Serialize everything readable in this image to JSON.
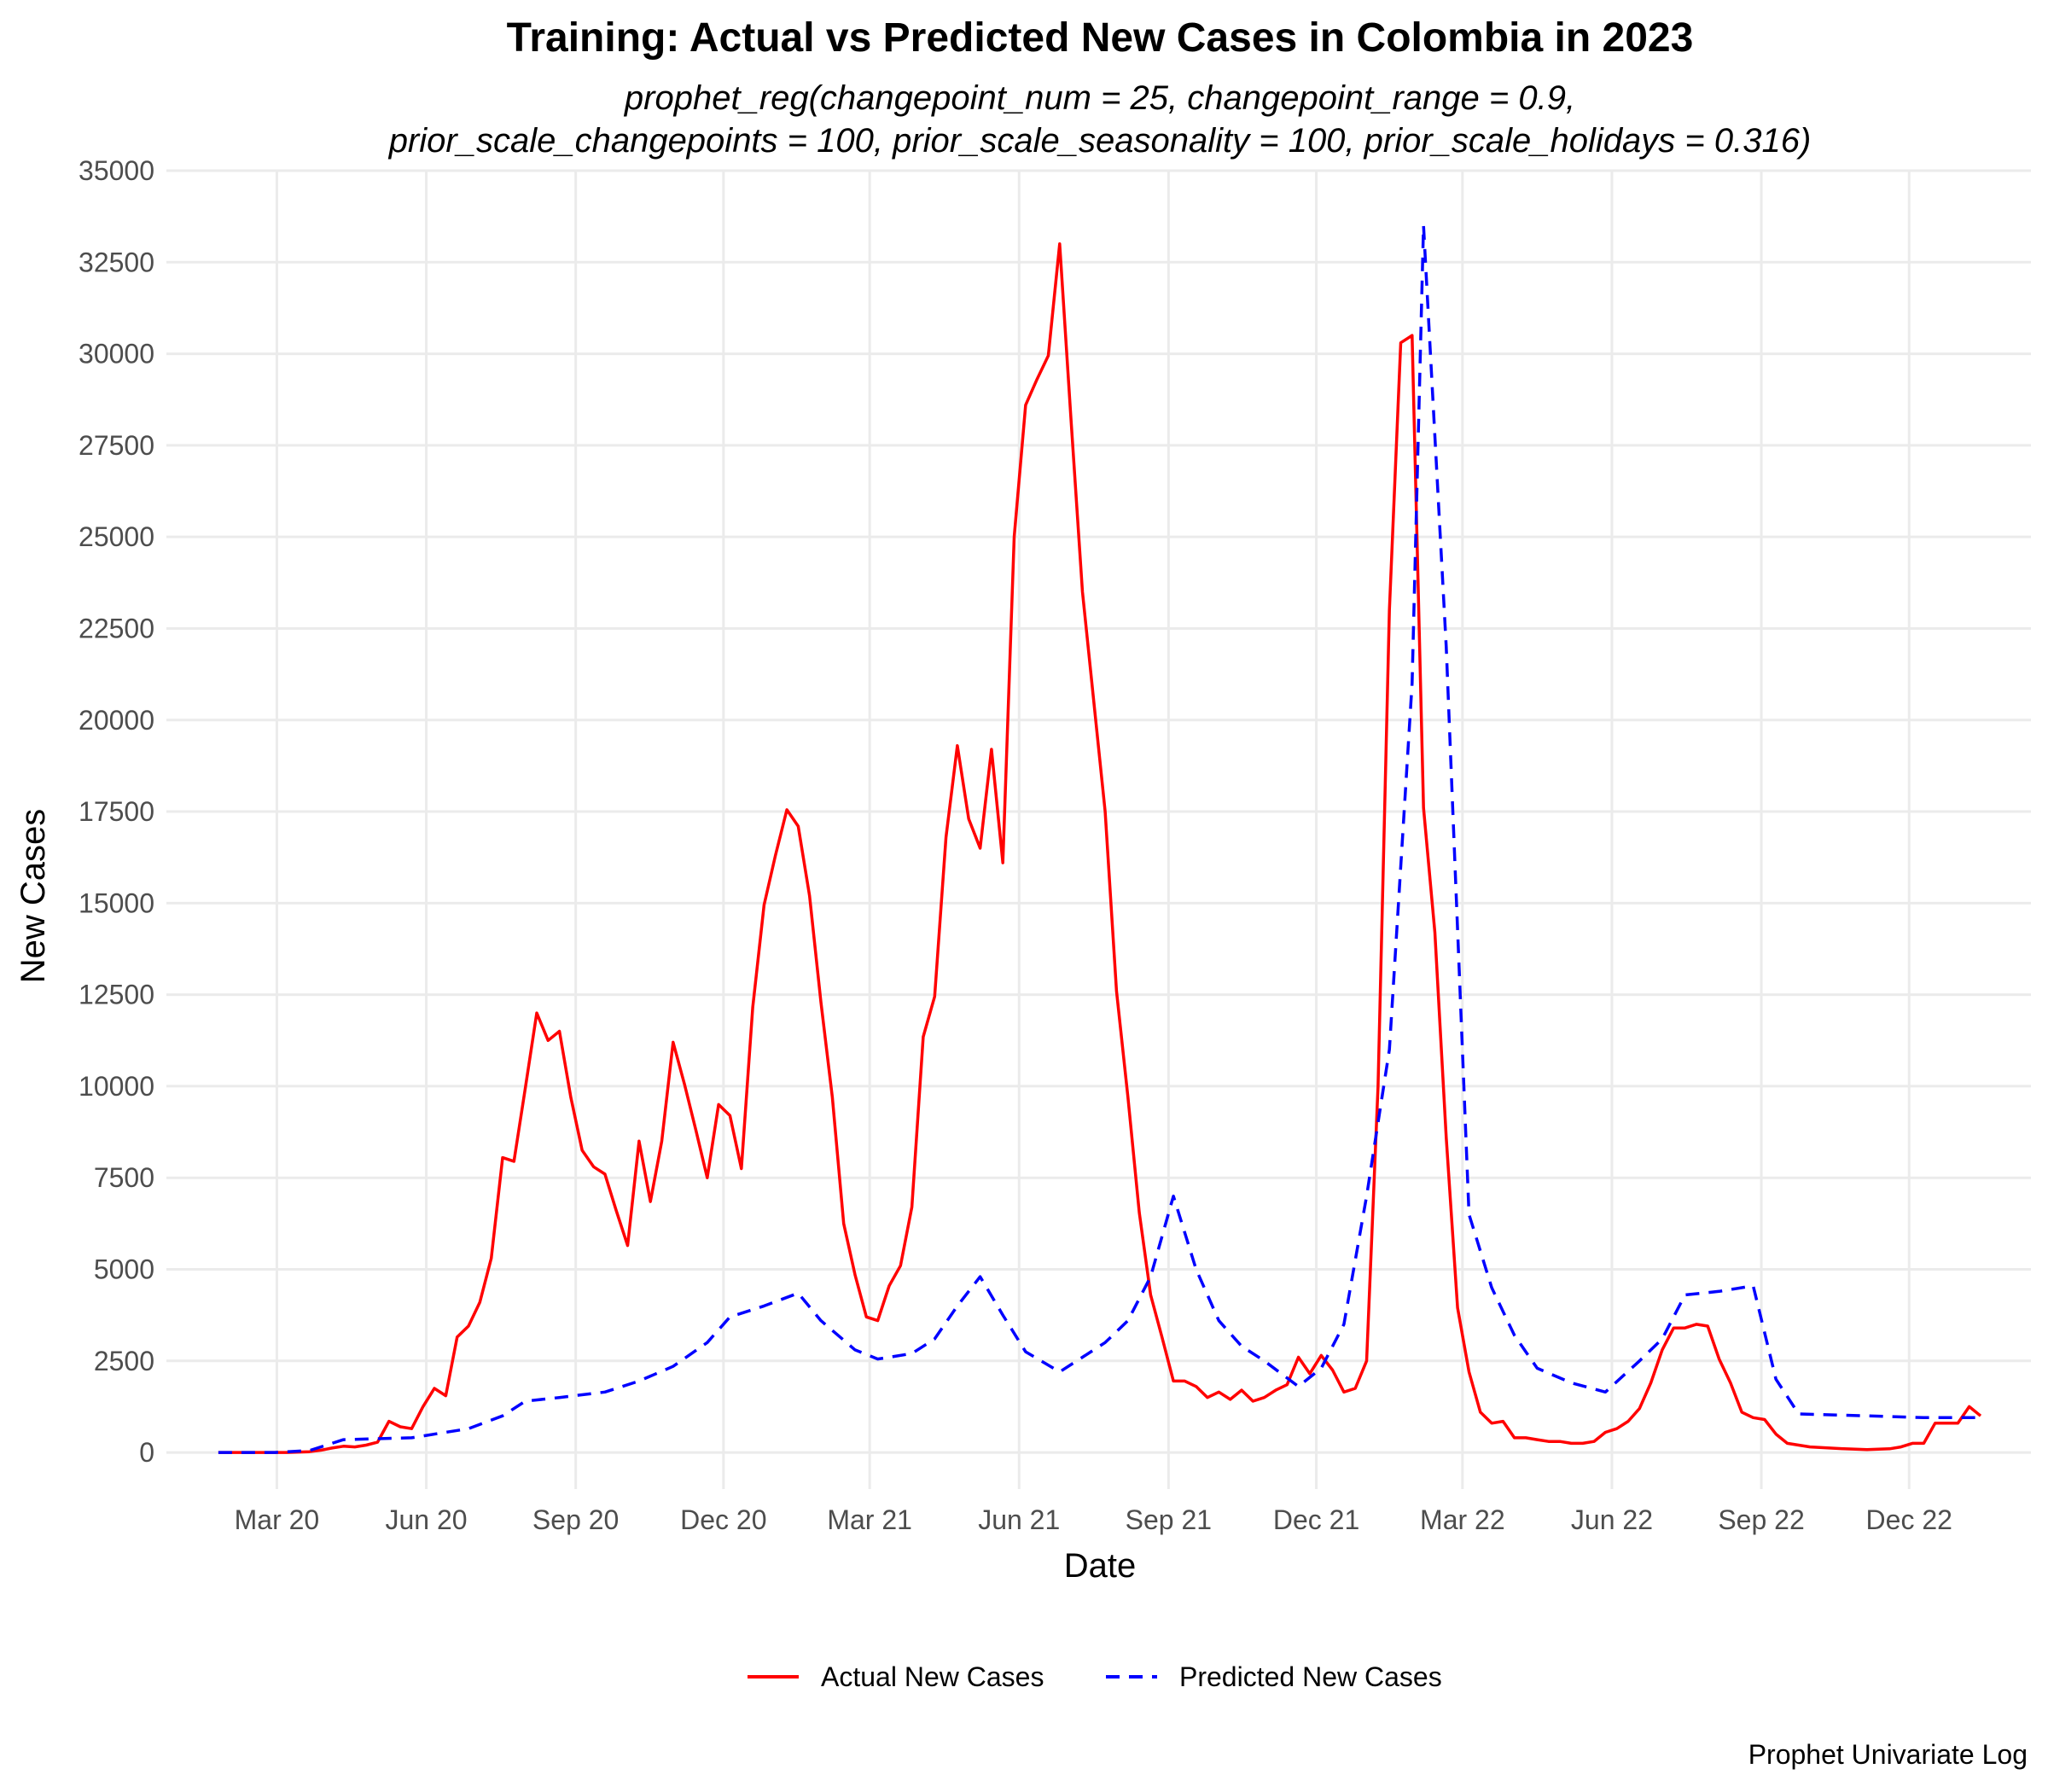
{
  "chart_data": {
    "type": "line",
    "title": "Training: Actual vs Predicted New Cases in Colombia in 2023",
    "subtitle_lines": [
      "prophet_reg(changepoint_num = 25, changepoint_range = 0.9,",
      "prior_scale_changepoints = 100, prior_scale_seasonality = 100, prior_scale_holidays = 0.316)"
    ],
    "xlabel": "Date",
    "ylabel": "New Cases",
    "caption": "Prophet Univariate Log",
    "ylim": [
      -1000,
      35000
    ],
    "y_ticks": [
      0,
      2500,
      5000,
      7500,
      10000,
      12500,
      15000,
      17500,
      20000,
      22500,
      25000,
      27500,
      30000,
      32500,
      35000
    ],
    "xlim": [
      "2019-12-24",
      "2023-02-14"
    ],
    "x_ticks": [
      {
        "date": "2020-03-01",
        "label": "Mar 20"
      },
      {
        "date": "2020-06-01",
        "label": "Jun 20"
      },
      {
        "date": "2020-09-01",
        "label": "Sep 20"
      },
      {
        "date": "2020-12-01",
        "label": "Dec 20"
      },
      {
        "date": "2021-03-01",
        "label": "Mar 21"
      },
      {
        "date": "2021-06-01",
        "label": "Jun 21"
      },
      {
        "date": "2021-09-01",
        "label": "Sep 21"
      },
      {
        "date": "2021-12-01",
        "label": "Dec 21"
      },
      {
        "date": "2022-03-01",
        "label": "Mar 22"
      },
      {
        "date": "2022-06-01",
        "label": "Jun 22"
      },
      {
        "date": "2022-09-01",
        "label": "Sep 22"
      },
      {
        "date": "2022-12-01",
        "label": "Dec 22"
      }
    ],
    "grid": true,
    "legend_position": "bottom",
    "series": [
      {
        "name": "Actual New Cases",
        "color": "#ff0000",
        "dash": "solid",
        "points": [
          [
            "2020-01-25",
            0
          ],
          [
            "2020-02-15",
            0
          ],
          [
            "2020-03-07",
            0
          ],
          [
            "2020-03-21",
            20
          ],
          [
            "2020-03-28",
            60
          ],
          [
            "2020-04-04",
            120
          ],
          [
            "2020-04-11",
            170
          ],
          [
            "2020-04-18",
            150
          ],
          [
            "2020-04-25",
            200
          ],
          [
            "2020-05-02",
            280
          ],
          [
            "2020-05-09",
            850
          ],
          [
            "2020-05-16",
            700
          ],
          [
            "2020-05-23",
            650
          ],
          [
            "2020-05-30",
            1250
          ],
          [
            "2020-06-06",
            1750
          ],
          [
            "2020-06-13",
            1550
          ],
          [
            "2020-06-20",
            3150
          ],
          [
            "2020-06-27",
            3450
          ],
          [
            "2020-07-04",
            4100
          ],
          [
            "2020-07-11",
            5300
          ],
          [
            "2020-07-18",
            8050
          ],
          [
            "2020-07-25",
            7950
          ],
          [
            "2020-08-01",
            9950
          ],
          [
            "2020-08-08",
            12000
          ],
          [
            "2020-08-15",
            11250
          ],
          [
            "2020-08-22",
            11500
          ],
          [
            "2020-08-29",
            9700
          ],
          [
            "2020-09-05",
            8250
          ],
          [
            "2020-09-12",
            7800
          ],
          [
            "2020-09-19",
            7600
          ],
          [
            "2020-09-26",
            6600
          ],
          [
            "2020-10-03",
            5650
          ],
          [
            "2020-10-10",
            8500
          ],
          [
            "2020-10-17",
            6850
          ],
          [
            "2020-10-24",
            8500
          ],
          [
            "2020-10-31",
            11200
          ],
          [
            "2020-11-07",
            10050
          ],
          [
            "2020-11-14",
            8800
          ],
          [
            "2020-11-21",
            7500
          ],
          [
            "2020-11-28",
            9500
          ],
          [
            "2020-12-05",
            9200
          ],
          [
            "2020-12-12",
            7750
          ],
          [
            "2020-12-19",
            12150
          ],
          [
            "2020-12-26",
            14950
          ],
          [
            "2021-01-02",
            16300
          ],
          [
            "2021-01-09",
            17550
          ],
          [
            "2021-01-16",
            17100
          ],
          [
            "2021-01-23",
            15200
          ],
          [
            "2021-01-30",
            12300
          ],
          [
            "2021-02-06",
            9700
          ],
          [
            "2021-02-13",
            6250
          ],
          [
            "2021-02-20",
            4850
          ],
          [
            "2021-02-27",
            3700
          ],
          [
            "2021-03-06",
            3600
          ],
          [
            "2021-03-13",
            4550
          ],
          [
            "2021-03-20",
            5100
          ],
          [
            "2021-03-27",
            6700
          ],
          [
            "2021-04-03",
            11350
          ],
          [
            "2021-04-10",
            12450
          ],
          [
            "2021-04-17",
            16800
          ],
          [
            "2021-04-24",
            19300
          ],
          [
            "2021-05-01",
            17300
          ],
          [
            "2021-05-08",
            16500
          ],
          [
            "2021-05-15",
            19200
          ],
          [
            "2021-05-22",
            16100
          ],
          [
            "2021-05-29",
            25000
          ],
          [
            "2021-06-05",
            28600
          ],
          [
            "2021-06-12",
            29300
          ],
          [
            "2021-06-19",
            29950
          ],
          [
            "2021-06-26",
            33000
          ],
          [
            "2021-07-03",
            28200
          ],
          [
            "2021-07-10",
            23500
          ],
          [
            "2021-07-24",
            17500
          ],
          [
            "2021-07-31",
            12600
          ],
          [
            "2021-08-07",
            9700
          ],
          [
            "2021-08-14",
            6550
          ],
          [
            "2021-08-21",
            4300
          ],
          [
            "2021-08-28",
            3150
          ],
          [
            "2021-09-04",
            1950
          ],
          [
            "2021-09-11",
            1950
          ],
          [
            "2021-09-18",
            1800
          ],
          [
            "2021-09-25",
            1500
          ],
          [
            "2021-10-02",
            1650
          ],
          [
            "2021-10-09",
            1450
          ],
          [
            "2021-10-16",
            1700
          ],
          [
            "2021-10-23",
            1400
          ],
          [
            "2021-10-30",
            1500
          ],
          [
            "2021-11-06",
            1700
          ],
          [
            "2021-11-13",
            1850
          ],
          [
            "2021-11-20",
            2600
          ],
          [
            "2021-11-27",
            2150
          ],
          [
            "2021-12-04",
            2650
          ],
          [
            "2021-12-11",
            2250
          ],
          [
            "2021-12-18",
            1650
          ],
          [
            "2021-12-25",
            1750
          ],
          [
            "2022-01-01",
            2500
          ],
          [
            "2022-01-08",
            10000
          ],
          [
            "2022-01-15",
            23000
          ],
          [
            "2022-01-22",
            30300
          ],
          [
            "2022-01-29",
            30500
          ],
          [
            "2022-02-05",
            17600
          ],
          [
            "2022-02-12",
            14200
          ],
          [
            "2022-02-19",
            8600
          ],
          [
            "2022-02-26",
            3950
          ],
          [
            "2022-03-05",
            2200
          ],
          [
            "2022-03-12",
            1100
          ],
          [
            "2022-03-19",
            800
          ],
          [
            "2022-03-26",
            850
          ],
          [
            "2022-04-02",
            400
          ],
          [
            "2022-04-09",
            400
          ],
          [
            "2022-04-16",
            350
          ],
          [
            "2022-04-23",
            300
          ],
          [
            "2022-04-30",
            300
          ],
          [
            "2022-05-07",
            250
          ],
          [
            "2022-05-14",
            250
          ],
          [
            "2022-05-21",
            300
          ],
          [
            "2022-05-28",
            550
          ],
          [
            "2022-06-04",
            650
          ],
          [
            "2022-06-11",
            850
          ],
          [
            "2022-06-18",
            1200
          ],
          [
            "2022-06-25",
            1900
          ],
          [
            "2022-07-02",
            2800
          ],
          [
            "2022-07-09",
            3400
          ],
          [
            "2022-07-16",
            3400
          ],
          [
            "2022-07-23",
            3500
          ],
          [
            "2022-07-30",
            3450
          ],
          [
            "2022-08-06",
            2550
          ],
          [
            "2022-08-13",
            1900
          ],
          [
            "2022-08-20",
            1100
          ],
          [
            "2022-08-27",
            950
          ],
          [
            "2022-09-03",
            900
          ],
          [
            "2022-09-10",
            500
          ],
          [
            "2022-09-17",
            250
          ],
          [
            "2022-10-01",
            150
          ],
          [
            "2022-10-22",
            100
          ],
          [
            "2022-11-05",
            80
          ],
          [
            "2022-11-19",
            100
          ],
          [
            "2022-11-26",
            150
          ],
          [
            "2022-12-03",
            250
          ],
          [
            "2022-12-10",
            250
          ],
          [
            "2022-12-17",
            800
          ],
          [
            "2022-12-31",
            800
          ],
          [
            "2023-01-07",
            1250
          ],
          [
            "2023-01-14",
            1000
          ]
        ]
      },
      {
        "name": "Predicted New Cases",
        "color": "#0000ff",
        "dash": "dashed",
        "points": [
          [
            "2020-01-25",
            0
          ],
          [
            "2020-02-29",
            0
          ],
          [
            "2020-03-21",
            50
          ],
          [
            "2020-04-11",
            350
          ],
          [
            "2020-05-23",
            400
          ],
          [
            "2020-06-27",
            650
          ],
          [
            "2020-07-18",
            1000
          ],
          [
            "2020-08-01",
            1400
          ],
          [
            "2020-08-22",
            1500
          ],
          [
            "2020-09-19",
            1650
          ],
          [
            "2020-10-10",
            1950
          ],
          [
            "2020-10-31",
            2350
          ],
          [
            "2020-11-21",
            3000
          ],
          [
            "2020-12-05",
            3700
          ],
          [
            "2020-12-26",
            4000
          ],
          [
            "2021-01-16",
            4350
          ],
          [
            "2021-01-30",
            3600
          ],
          [
            "2021-02-20",
            2800
          ],
          [
            "2021-03-06",
            2550
          ],
          [
            "2021-03-27",
            2700
          ],
          [
            "2021-04-10",
            3100
          ],
          [
            "2021-04-24",
            4000
          ],
          [
            "2021-05-08",
            4800
          ],
          [
            "2021-05-22",
            3750
          ],
          [
            "2021-06-05",
            2750
          ],
          [
            "2021-06-26",
            2200
          ],
          [
            "2021-07-10",
            2600
          ],
          [
            "2021-07-24",
            3000
          ],
          [
            "2021-08-07",
            3600
          ],
          [
            "2021-08-21",
            4800
          ],
          [
            "2021-09-04",
            7000
          ],
          [
            "2021-09-18",
            5000
          ],
          [
            "2021-10-02",
            3600
          ],
          [
            "2021-10-16",
            2900
          ],
          [
            "2021-10-30",
            2500
          ],
          [
            "2021-11-20",
            1800
          ],
          [
            "2021-12-04",
            2300
          ],
          [
            "2021-12-18",
            3500
          ],
          [
            "2022-01-01",
            7000
          ],
          [
            "2022-01-15",
            11000
          ],
          [
            "2022-01-29",
            21000
          ],
          [
            "2022-02-05",
            33500
          ],
          [
            "2022-02-19",
            22000
          ],
          [
            "2022-03-05",
            6500
          ],
          [
            "2022-03-19",
            4500
          ],
          [
            "2022-04-02",
            3200
          ],
          [
            "2022-04-16",
            2300
          ],
          [
            "2022-05-07",
            1900
          ],
          [
            "2022-05-28",
            1650
          ],
          [
            "2022-06-18",
            2500
          ],
          [
            "2022-07-02",
            3100
          ],
          [
            "2022-07-16",
            4300
          ],
          [
            "2022-08-06",
            4400
          ],
          [
            "2022-08-27",
            4550
          ],
          [
            "2022-09-10",
            2000
          ],
          [
            "2022-09-24",
            1050
          ],
          [
            "2022-11-05",
            1000
          ],
          [
            "2022-12-10",
            950
          ],
          [
            "2023-01-14",
            950
          ]
        ]
      }
    ]
  }
}
